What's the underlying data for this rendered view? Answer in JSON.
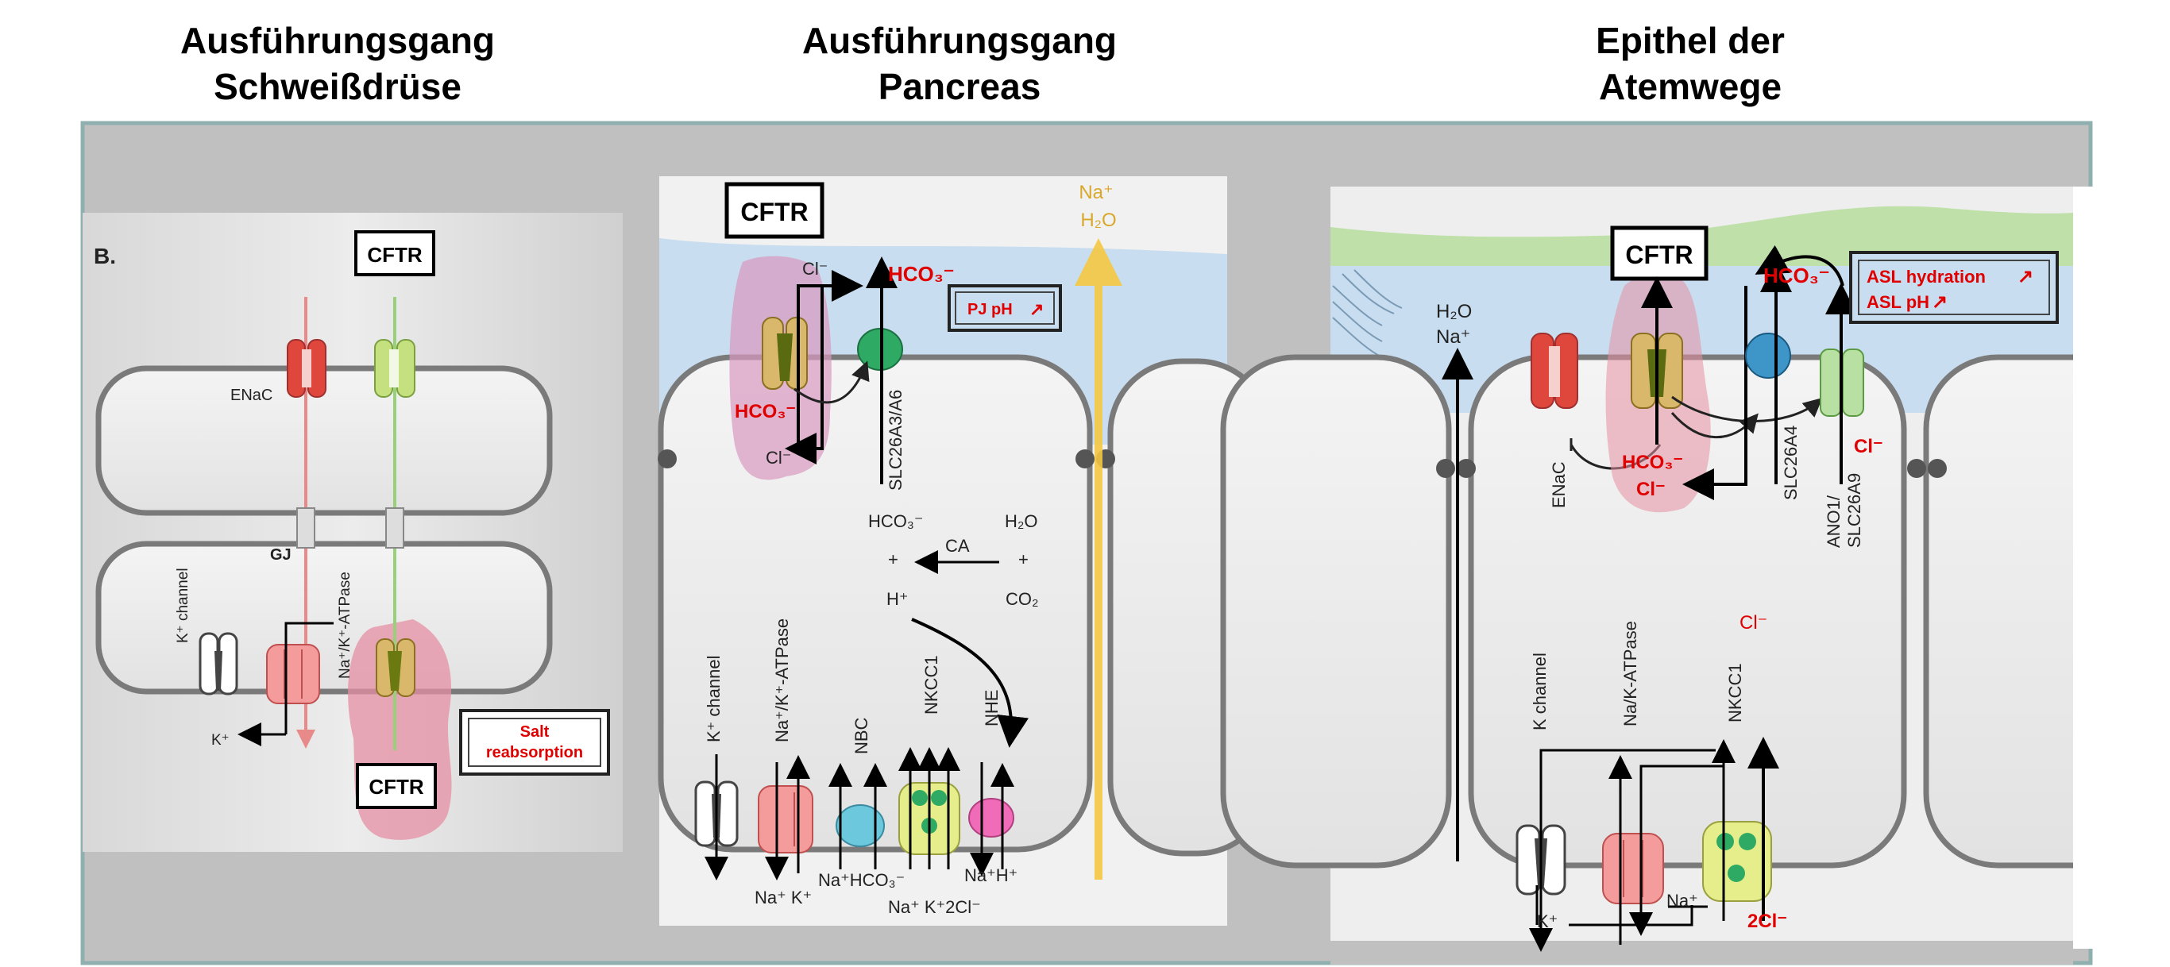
{
  "headings": {
    "col1": {
      "line1": "Ausführungsgang",
      "line2": "Schweißdrüse"
    },
    "col2": {
      "line1": "Ausführungsgang",
      "line2": "Pancreas"
    },
    "col3": {
      "line1": "Epithel der",
      "line2": "Atemwege"
    }
  },
  "panel1": {
    "panel_label": "B.",
    "cftr_top": "CFTR",
    "cftr_bottom": "CFTR",
    "enac": "ENaC",
    "gj": "GJ",
    "k_channel": "K⁺ channel",
    "atpase": "Na⁺/K⁺-ATPase",
    "k_ion": "K⁺",
    "salt_box_line1": "Salt",
    "salt_box_line2": "reabsorption"
  },
  "panel2": {
    "cftr": "CFTR",
    "cl_top": "Cl⁻",
    "hco3_red_top": "HCO₃⁻",
    "pj_ph": "PJ pH",
    "na_top": "Na⁺",
    "h2o_top": "H₂O",
    "hco3_red_left": "HCO₃⁻",
    "cl_bottom": "Cl⁻",
    "slc": "SLC26A3/A6",
    "hco3_mid": "HCO₃⁻",
    "ca": "CA",
    "h2o_mid": "H₂O",
    "plus1": "+",
    "plus2": "+",
    "h_plus": "H⁺",
    "co2": "CO₂",
    "k_channel": "K⁺ channel",
    "atpase": "Na⁺/K⁺-ATPase",
    "nbc": "NBC",
    "nkcc1": "NKCC1",
    "nhe": "NHE",
    "bottom_nak": "Na⁺ K⁺",
    "bottom_nahco3": "Na⁺HCO₃⁻",
    "bottom_nak2cl": "Na⁺ K⁺2Cl⁻",
    "bottom_nah": "Na⁺H⁺"
  },
  "panel3": {
    "cftr": "CFTR",
    "hco3_top": "HCO₃⁻",
    "asl_line1": "ASL hydration",
    "asl_line2": "ASL pH",
    "h2o": "H₂O",
    "na": "Na⁺",
    "enac": "ENaC",
    "hco3_red": "HCO₃⁻",
    "cl_red": "Cl⁻",
    "slc": "SLC26A4",
    "ano1": "ANO1/",
    "slc26a9": "SLC26A9",
    "cl_red_right": "Cl⁻",
    "cl_mid": "Cl⁻",
    "k_channel": "K channel",
    "atpase": "Na/K-ATPase",
    "nkcc1": "NKCC1",
    "k_bottom": "K⁺",
    "na_bottom": "Na⁺",
    "cl2_bottom": "2Cl⁻"
  },
  "colors": {
    "frame_bg": "#c0c0c0",
    "frame_border": "#8fb0ae",
    "lumen_blue": "#c8ddef",
    "cell_fill": "#f7f7f7",
    "red_text": "#e00000",
    "na_h2o_yellow": "#d9a82a",
    "highlight_pink": "#e58fa3"
  }
}
